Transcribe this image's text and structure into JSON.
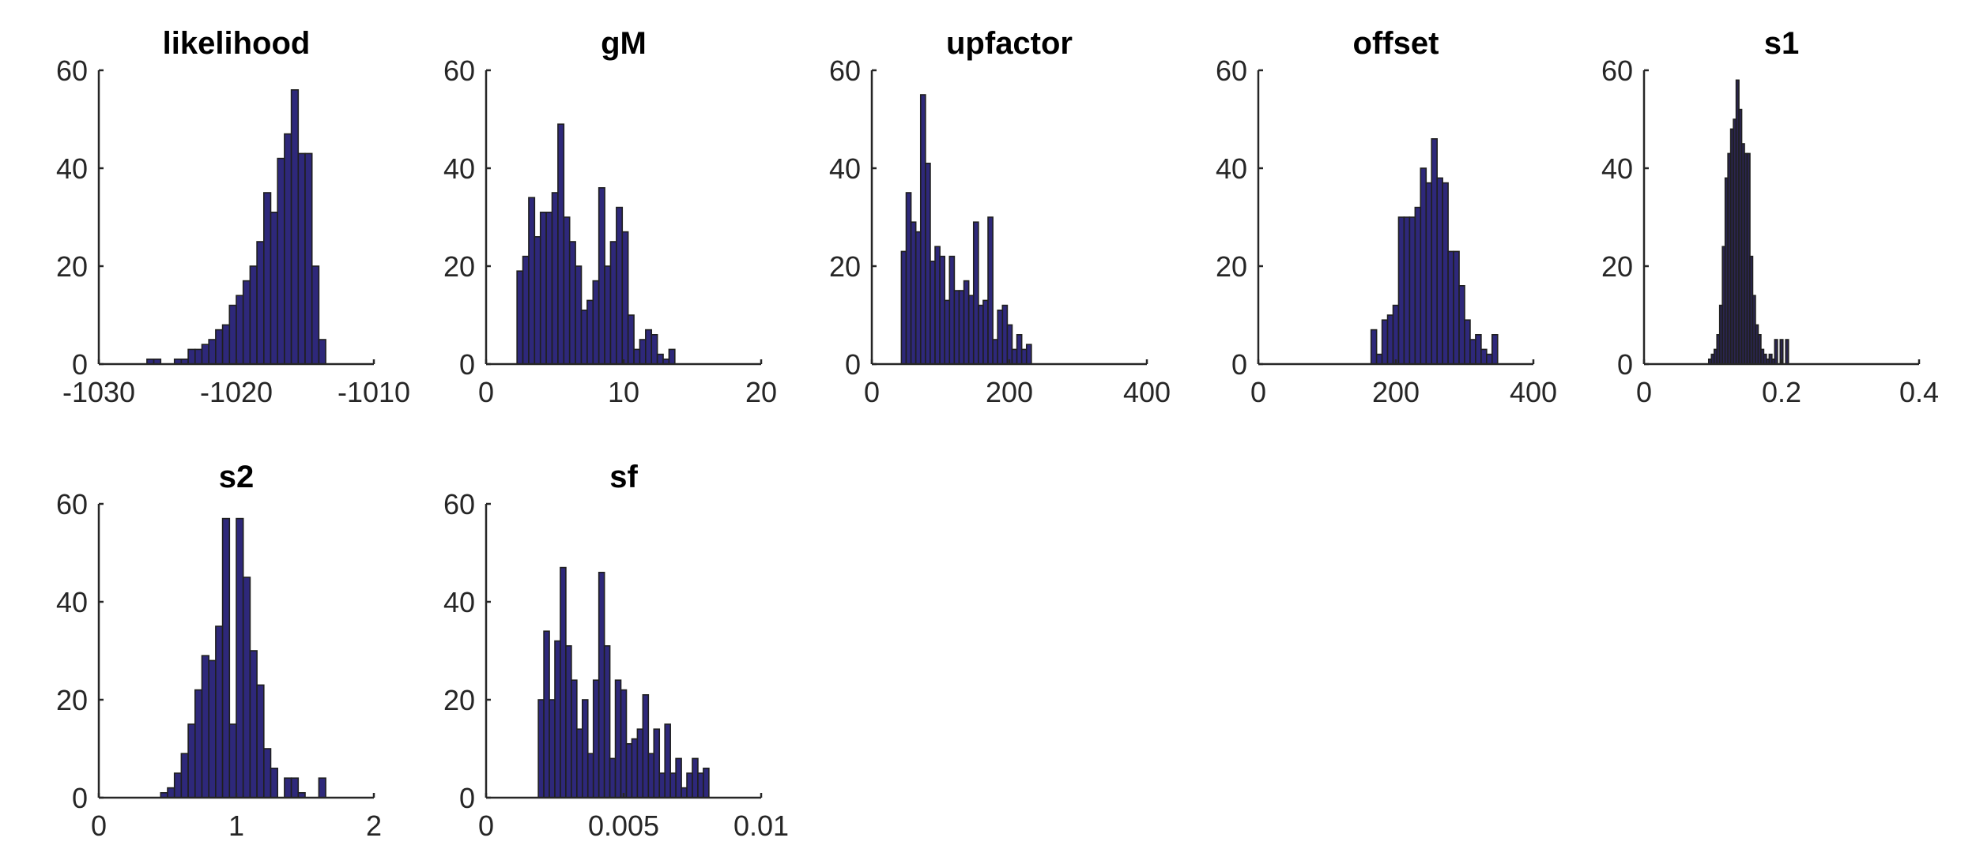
{
  "chart_data": [
    {
      "type": "bar",
      "title": "likelihood",
      "xlim": [
        -1030,
        -1010
      ],
      "ylim": [
        0,
        60
      ],
      "xticks": [
        -1030,
        -1020,
        -1010
      ],
      "xtick_labels": [
        "-1030",
        "-1020",
        "-1010"
      ],
      "yticks": [
        0,
        20,
        40,
        60
      ],
      "ytick_labels": [
        "0",
        "20",
        "40",
        "60"
      ],
      "bin_width": 0.5,
      "bin_start": -1026.5,
      "values": [
        1,
        1,
        0,
        0,
        1,
        1,
        3,
        3,
        4,
        5,
        7,
        8,
        12,
        14,
        17,
        20,
        25,
        35,
        31,
        42,
        47,
        56,
        43,
        43,
        20,
        5
      ],
      "bar_color": "#2e287a",
      "grid": false
    },
    {
      "type": "bar",
      "title": "gM",
      "xlim": [
        0,
        20
      ],
      "ylim": [
        0,
        60
      ],
      "xticks": [
        0,
        10,
        20
      ],
      "xtick_labels": [
        "0",
        "10",
        "20"
      ],
      "yticks": [
        0,
        20,
        40,
        60
      ],
      "ytick_labels": [
        "0",
        "20",
        "40",
        "60"
      ],
      "bin_width": 0.425,
      "bin_start": 2.25,
      "values": [
        19,
        22,
        34,
        26,
        31,
        31,
        35,
        49,
        30,
        25,
        20,
        11,
        13,
        17,
        36,
        20,
        25,
        32,
        27,
        10,
        3,
        5,
        7,
        6,
        2,
        1,
        3
      ],
      "bar_color": "#2e287a",
      "grid": false
    },
    {
      "type": "bar",
      "title": "upfactor",
      "xlim": [
        0,
        400
      ],
      "ylim": [
        0,
        60
      ],
      "xticks": [
        0,
        200,
        400
      ],
      "xtick_labels": [
        "0",
        "200",
        "400"
      ],
      "yticks": [
        0,
        20,
        40,
        60
      ],
      "ytick_labels": [
        "0",
        "20",
        "40",
        "60"
      ],
      "bin_width": 7,
      "bin_start": 43,
      "values": [
        23,
        35,
        29,
        27,
        55,
        41,
        21,
        24,
        22,
        13,
        22,
        15,
        15,
        17,
        14,
        29,
        12,
        13,
        30,
        5,
        11,
        12,
        8,
        3,
        6,
        3,
        4
      ],
      "bar_color": "#2e287a",
      "grid": false
    },
    {
      "type": "bar",
      "title": "offset",
      "xlim": [
        0,
        400
      ],
      "ylim": [
        0,
        60
      ],
      "xticks": [
        0,
        200,
        400
      ],
      "xtick_labels": [
        "0",
        "200",
        "400"
      ],
      "yticks": [
        0,
        20,
        40,
        60
      ],
      "ytick_labels": [
        "0",
        "20",
        "40",
        "60"
      ],
      "bin_width": 8,
      "bin_start": 164,
      "values": [
        7,
        2,
        9,
        10,
        12,
        30,
        30,
        30,
        32,
        40,
        37,
        46,
        38,
        37,
        23,
        23,
        16,
        9,
        5,
        6,
        3,
        2,
        6
      ],
      "bar_color": "#2e287a",
      "grid": false
    },
    {
      "type": "bar",
      "title": "s1",
      "xlim": [
        0,
        0.4
      ],
      "ylim": [
        0,
        60
      ],
      "xticks": [
        0,
        0.2,
        0.4
      ],
      "xtick_labels": [
        "0",
        "0.2",
        "0.4"
      ],
      "yticks": [
        0,
        20,
        40,
        60
      ],
      "ytick_labels": [
        "0",
        "20",
        "40",
        "60"
      ],
      "bin_width": 0.004,
      "bin_start": 0.094,
      "values": [
        1,
        2,
        3,
        6,
        12,
        24,
        38,
        43,
        48,
        50,
        58,
        52,
        45,
        43,
        43,
        22,
        14,
        8,
        6,
        3,
        2,
        1,
        2,
        1,
        5,
        0,
        5,
        0,
        5
      ],
      "bar_color": "#2a2550",
      "grid": false
    },
    {
      "type": "bar",
      "title": "s2",
      "xlim": [
        0,
        2
      ],
      "ylim": [
        0,
        60
      ],
      "xticks": [
        0,
        1,
        2
      ],
      "xtick_labels": [
        "0",
        "1",
        "2"
      ],
      "yticks": [
        0,
        20,
        40,
        60
      ],
      "ytick_labels": [
        "0",
        "20",
        "40",
        "60"
      ],
      "bin_width": 0.05,
      "bin_start": 0.45,
      "values": [
        1,
        2,
        5,
        9,
        15,
        22,
        29,
        28,
        35,
        57,
        15,
        57,
        45,
        30,
        23,
        10,
        6,
        0,
        4,
        4,
        1,
        0,
        0,
        4
      ],
      "bar_color": "#2e287a",
      "grid": false
    },
    {
      "type": "bar",
      "title": "sf",
      "xlim": [
        0,
        0.01
      ],
      "ylim": [
        0,
        60
      ],
      "xticks": [
        0,
        0.005,
        0.01
      ],
      "xtick_labels": [
        "0",
        "0.005",
        "0.01"
      ],
      "yticks": [
        0,
        20,
        40,
        60
      ],
      "ytick_labels": [
        "0",
        "20",
        "40",
        "60"
      ],
      "bin_width": 0.0002,
      "bin_start": 0.0019,
      "values": [
        20,
        34,
        20,
        32,
        47,
        31,
        24,
        14,
        20,
        9,
        24,
        46,
        31,
        8,
        24,
        22,
        11,
        12,
        14,
        21,
        9,
        14,
        5,
        15,
        5,
        8,
        2,
        5,
        8,
        5,
        6,
        0,
        0,
        0
      ],
      "bar_color": "#2e287a",
      "grid": false
    }
  ]
}
